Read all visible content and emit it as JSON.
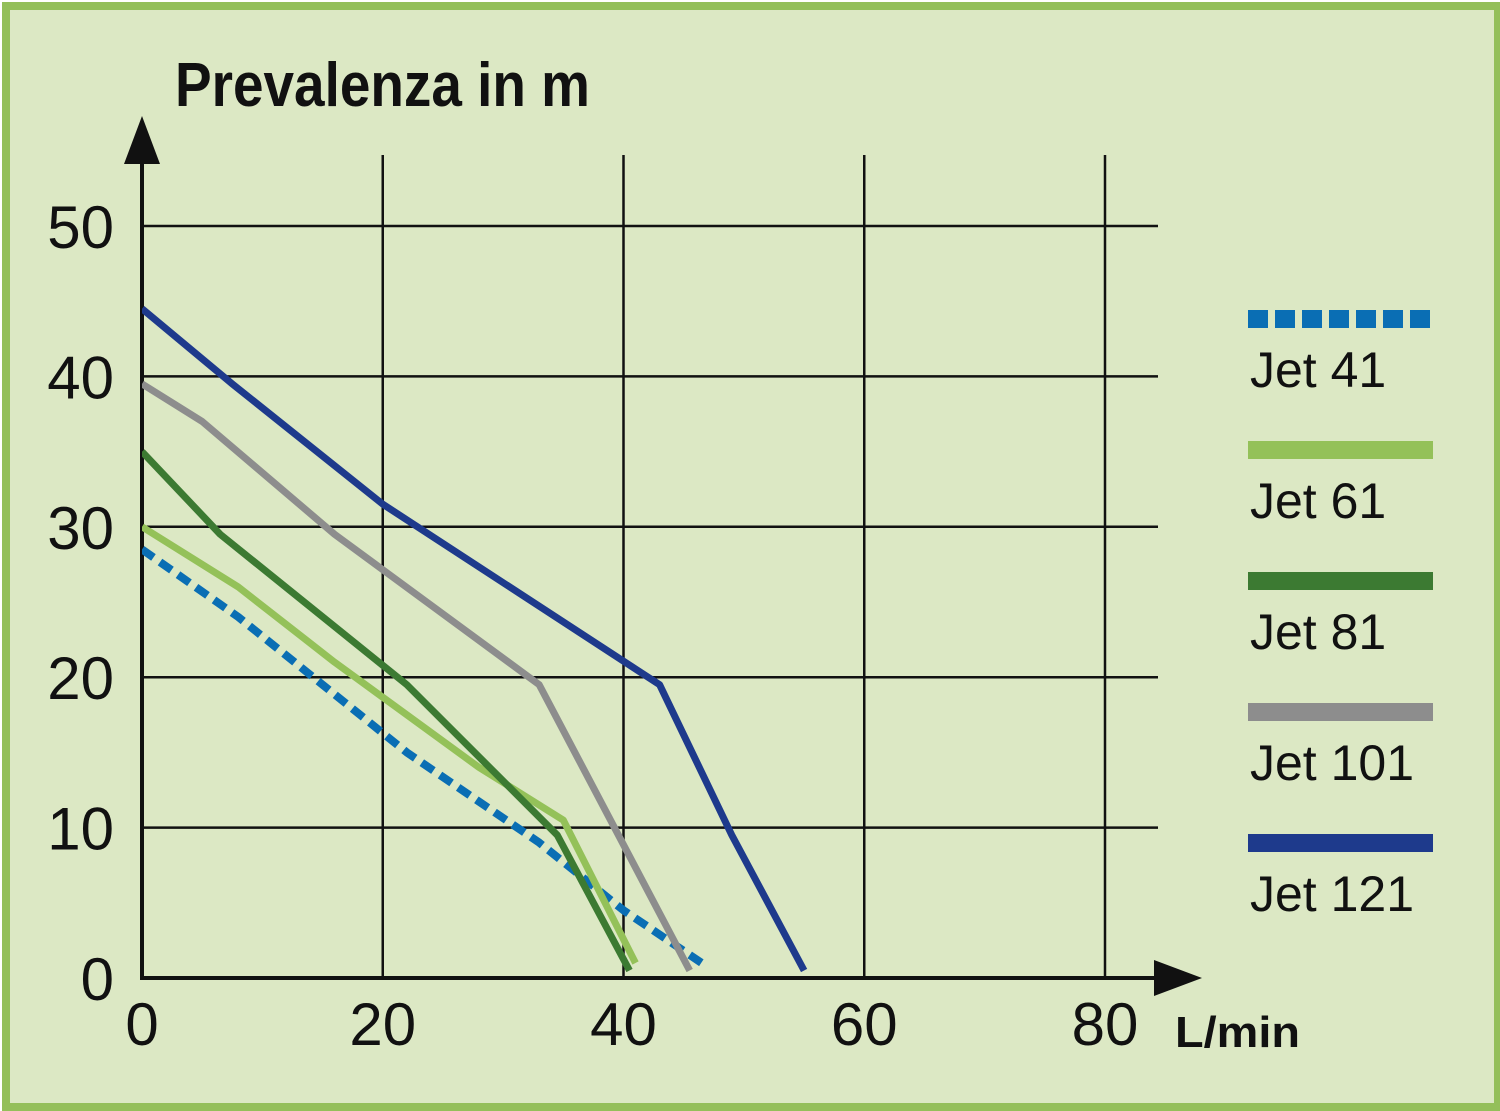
{
  "chart_data": {
    "type": "line",
    "ylabel": "Prevalenza in  m",
    "xlabel": "L/min",
    "xlim": [
      0,
      80
    ],
    "ylim": [
      0,
      50
    ],
    "x_ticks": [
      "0",
      "20",
      "40",
      "60",
      "80"
    ],
    "y_ticks": [
      "0",
      "10",
      "20",
      "30",
      "40",
      "50"
    ],
    "grid": true,
    "legend_position": "right",
    "series": [
      {
        "name": "Jet 41",
        "color": "#0a6eb4",
        "style": "dashed",
        "points": [
          [
            0,
            28.5
          ],
          [
            8,
            24
          ],
          [
            15,
            19.5
          ],
          [
            22,
            15
          ],
          [
            33,
            9
          ],
          [
            40,
            4.5
          ],
          [
            46.5,
            1
          ]
        ]
      },
      {
        "name": "Jet 61",
        "color": "#94c159",
        "style": "solid",
        "points": [
          [
            0,
            30
          ],
          [
            8,
            26
          ],
          [
            16,
            21
          ],
          [
            28,
            14
          ],
          [
            35,
            10.5
          ],
          [
            41,
            1
          ]
        ]
      },
      {
        "name": "Jet 81",
        "color": "#3c7a32",
        "style": "solid",
        "points": [
          [
            0,
            35
          ],
          [
            6.5,
            29.5
          ],
          [
            22,
            19.5
          ],
          [
            34.5,
            9.5
          ],
          [
            40.5,
            0.5
          ]
        ]
      },
      {
        "name": "Jet 101",
        "color": "#8d8d8d",
        "style": "solid",
        "points": [
          [
            0,
            39.5
          ],
          [
            5,
            37
          ],
          [
            16,
            29.5
          ],
          [
            33,
            19.5
          ],
          [
            45.5,
            0.5
          ]
        ]
      },
      {
        "name": "Jet 121",
        "color": "#1e3a8c",
        "style": "solid",
        "points": [
          [
            0,
            44.5
          ],
          [
            7.5,
            39.5
          ],
          [
            20,
            31.5
          ],
          [
            43,
            19.5
          ],
          [
            49,
            9.5
          ],
          [
            55,
            0.5
          ]
        ]
      }
    ]
  }
}
